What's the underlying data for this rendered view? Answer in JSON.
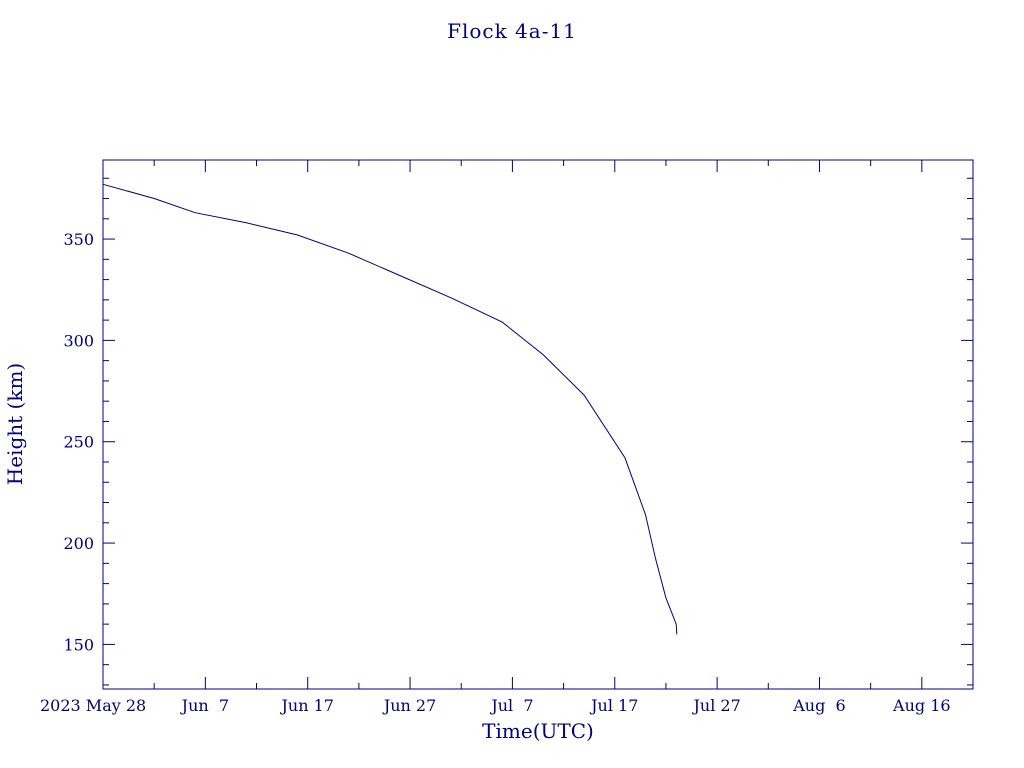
{
  "chart_data": {
    "type": "line",
    "title": "Flock 4a-11",
    "xlabel": "Time(UTC)",
    "ylabel": "Height (km)",
    "x_start_date": "2023-05-28",
    "xlim": [
      "2023-05-28",
      "2023-08-21"
    ],
    "ylim": [
      128,
      389
    ],
    "x_ticks": [
      {
        "date": "2023-05-28",
        "label": "2023 May 28"
      },
      {
        "date": "2023-06-07",
        "label": "Jun  7"
      },
      {
        "date": "2023-06-17",
        "label": "Jun 17"
      },
      {
        "date": "2023-06-27",
        "label": "Jun 27"
      },
      {
        "date": "2023-07-07",
        "label": "Jul  7"
      },
      {
        "date": "2023-07-17",
        "label": "Jul 17"
      },
      {
        "date": "2023-07-27",
        "label": "Jul 27"
      },
      {
        "date": "2023-08-06",
        "label": "Aug  6"
      },
      {
        "date": "2023-08-16",
        "label": "Aug 16"
      }
    ],
    "y_ticks": [
      150,
      200,
      250,
      300,
      350
    ],
    "grid": false,
    "series": [
      {
        "name": "",
        "color": "#000080",
        "x": [
          "2023-05-28",
          "2023-06-02",
          "2023-06-06",
          "2023-06-11",
          "2023-06-16",
          "2023-06-21",
          "2023-06-26",
          "2023-07-01",
          "2023-07-06",
          "2023-07-10",
          "2023-07-14",
          "2023-07-18",
          "2023-07-20",
          "2023-07-21",
          "2023-07-22",
          "2023-07-23",
          "2023-07-23"
        ],
        "y": [
          377,
          370,
          363,
          358,
          352,
          343,
          332,
          321,
          309,
          293,
          273,
          242,
          214,
          192,
          173,
          160,
          155
        ]
      }
    ]
  }
}
